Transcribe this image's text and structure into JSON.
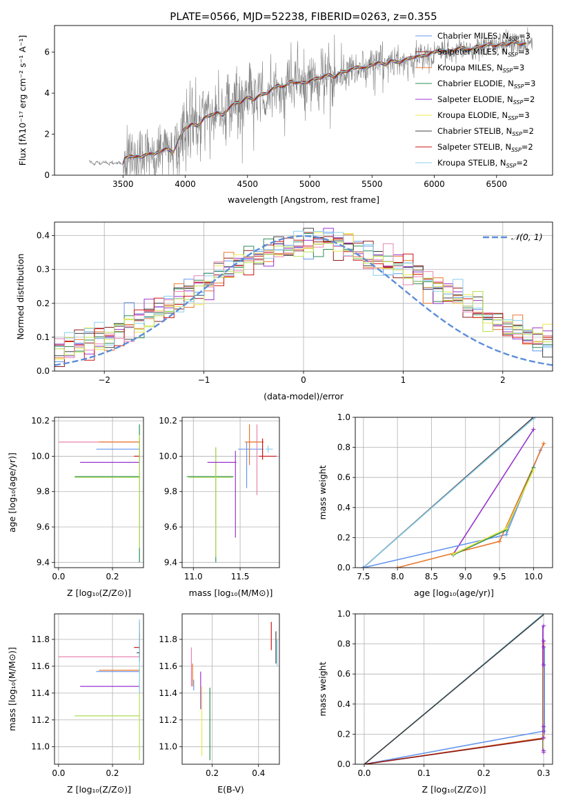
{
  "figure": {
    "title": "PLATE=0566, MJD=52238, FIBERID=0263, z=0.355"
  },
  "colors": {
    "chabrier_miles": "#6495ED",
    "salpeter_miles": "#8B1A1A",
    "kroupa_miles": "#E8762B",
    "chabrier_elodie": "#2E8B57",
    "salpeter_elodie": "#9932CC",
    "kroupa_elodie": "#E8E84A",
    "chabrier_stelib": "#404040",
    "salpeter_stelib": "#CC1111",
    "kroupa_stelib": "#87CEEB",
    "pink": "#E882B0",
    "lightgreen": "#B6E050",
    "gauss": "#5B8DD9",
    "data": "#808080"
  },
  "chart_data": [
    {
      "id": "spectrum",
      "type": "line",
      "xlabel": "wavelength [Angstrom, rest frame]",
      "ylabel": "Flux [fλ10⁻¹⁷ erg cm⁻² s⁻¹ A⁻¹]",
      "xlim": [
        2950,
        6950
      ],
      "ylim": [
        0,
        7.3
      ],
      "xticks": [
        "3500",
        "4000",
        "4500",
        "5000",
        "5500",
        "6000",
        "6500"
      ],
      "yticks": [
        "0",
        "2",
        "4",
        "6"
      ],
      "legend_position": "right",
      "legend": [
        {
          "label": "Chabrier MILES, N",
          "sub": "SSP",
          "suffix": "=3",
          "color": "chabrier_miles"
        },
        {
          "label": "Salpeter MILES, N",
          "sub": "SSP",
          "suffix": "=3",
          "color": "salpeter_miles"
        },
        {
          "label": "Kroupa MILES, N",
          "sub": "SSP",
          "suffix": "=3",
          "color": "kroupa_miles"
        },
        {
          "label": "Chabrier ELODIE, N",
          "sub": "SSP",
          "suffix": "=3",
          "color": "chabrier_elodie"
        },
        {
          "label": "Salpeter ELODIE, N",
          "sub": "SSP",
          "suffix": "=2",
          "color": "salpeter_elodie"
        },
        {
          "label": "Kroupa ELODIE, N",
          "sub": "SSP",
          "suffix": "=3",
          "color": "kroupa_elodie"
        },
        {
          "label": "Chabrier STELIB, N",
          "sub": "SSP",
          "suffix": "=2",
          "color": "chabrier_stelib"
        },
        {
          "label": "Salpeter STELIB, N",
          "sub": "SSP",
          "suffix": "=2",
          "color": "salpeter_stelib"
        },
        {
          "label": "Kroupa STELIB, N",
          "sub": "SSP",
          "suffix": "=2",
          "color": "kroupa_stelib"
        }
      ],
      "model_wavelength": [
        3500,
        3550,
        3600,
        3650,
        3700,
        3750,
        3800,
        3850,
        3900,
        3950,
        4000,
        4050,
        4100,
        4150,
        4200,
        4250,
        4300,
        4350,
        4400,
        4450,
        4500,
        4550,
        4600,
        4650,
        4700,
        4750,
        4800,
        4850,
        4900,
        4950,
        5000,
        5050,
        5100,
        5150,
        5200,
        5250,
        5300,
        5350,
        5400,
        5450,
        5500,
        5550,
        5600,
        5650,
        5700,
        5750,
        5800,
        5850,
        5900,
        5950,
        6000,
        6050,
        6100,
        6150,
        6200,
        6250,
        6300,
        6350,
        6400,
        6450,
        6500,
        6550,
        6600,
        6650,
        6700
      ],
      "model_flux": [
        0.8,
        0.9,
        0.95,
        0.85,
        1.1,
        1.0,
        1.2,
        1.3,
        1.1,
        1.8,
        2.3,
        2.5,
        2.4,
        2.8,
        2.9,
        3.1,
        2.9,
        3.3,
        3.5,
        3.6,
        3.8,
        3.7,
        3.9,
        4.0,
        4.2,
        4.4,
        4.3,
        4.6,
        4.5,
        4.5,
        4.6,
        4.7,
        4.8,
        4.9,
        4.8,
        5.0,
        5.1,
        5.2,
        5.3,
        5.2,
        5.4,
        5.5,
        5.4,
        5.6,
        5.5,
        5.6,
        5.7,
        5.8,
        5.8,
        5.9,
        6.0,
        6.1,
        6.0,
        6.1,
        6.2,
        6.2,
        6.1,
        6.3,
        6.3,
        6.4,
        6.3,
        6.4,
        6.4,
        6.5,
        6.4
      ],
      "data_points": 400
    },
    {
      "id": "residuals",
      "type": "line",
      "xlabel": "(data-model)/error",
      "ylabel": "Normed distribution",
      "xlim": [
        -2.5,
        2.5
      ],
      "ylim": [
        0,
        0.44
      ],
      "xticks": [
        "−2",
        "−1",
        "0",
        "1",
        "2"
      ],
      "yticks": [
        "0.0",
        "0.1",
        "0.2",
        "0.3",
        "0.4"
      ],
      "legend": {
        "label": "𝒩(0, 1)",
        "color": "gauss"
      },
      "gaussian": {
        "mean": 0,
        "sigma": 1
      }
    },
    {
      "id": "age_vs_Z",
      "type": "scatter",
      "xlabel": "Z [log₁₀(Z/Z⊙)]",
      "ylabel": "age  [log₁₀(age/yr)]",
      "xlim": [
        -0.015,
        0.315
      ],
      "ylim": [
        9.37,
        10.22
      ],
      "xticks": [
        "0.0",
        "0.2"
      ],
      "yticks": [
        "9.4",
        "9.6",
        "9.8",
        "10.0",
        "10.2"
      ]
    },
    {
      "id": "age_vs_mass",
      "type": "scatter",
      "xlabel": "mass [log₁₀(M/M⊙)]",
      "xlim": [
        10.88,
        11.92
      ],
      "ylim": [
        9.37,
        10.22
      ],
      "xticks": [
        "11.0",
        "11.5"
      ],
      "yticks": [
        "9.4",
        "9.6",
        "9.8",
        "10.0",
        "10.2"
      ]
    },
    {
      "id": "massweight_vs_age",
      "type": "line",
      "xlabel": "age  [log₁₀(age/yr)]",
      "ylabel": "mass weight",
      "xlim": [
        7.38,
        10.28
      ],
      "ylim": [
        0,
        1.0
      ],
      "xticks": [
        "7.5",
        "8.0",
        "8.5",
        "9.0",
        "9.5",
        "10.0"
      ],
      "yticks": [
        "0.0",
        "0.2",
        "0.4",
        "0.6",
        "0.8",
        "1.0"
      ],
      "series": [
        {
          "color": "salpeter_stelib",
          "x": [
            7.5,
            10.0
          ],
          "y": [
            0,
            1.0
          ]
        },
        {
          "color": "chabrier_stelib",
          "x": [
            7.5,
            10.0
          ],
          "y": [
            0,
            1.0
          ]
        },
        {
          "color": "kroupa_stelib",
          "x": [
            7.5,
            10.02
          ],
          "y": [
            0,
            1.0
          ]
        },
        {
          "color": "salpeter_elodie",
          "x": [
            8.82,
            10.0
          ],
          "y": [
            0.09,
            0.92
          ]
        },
        {
          "color": "chabrier_miles",
          "x": [
            7.5,
            9.6,
            10.1
          ],
          "y": [
            0,
            0.22,
            0.78
          ]
        },
        {
          "color": "kroupa_miles",
          "x": [
            8.0,
            9.5,
            10.15
          ],
          "y": [
            0,
            0.175,
            0.825
          ]
        },
        {
          "color": "chabrier_elodie",
          "x": [
            8.82,
            9.6,
            10.0
          ],
          "y": [
            0.085,
            0.25,
            0.665
          ]
        },
        {
          "color": "kroupa_elodie",
          "x": [
            8.82,
            9.6,
            10.0
          ],
          "y": [
            0.09,
            0.26,
            0.65
          ]
        }
      ]
    },
    {
      "id": "mass_vs_Z",
      "type": "scatter",
      "xlabel": "Z [log₁₀(Z/Z⊙)]",
      "ylabel": "mass [log₁₀(M/M⊙)]",
      "xlim": [
        -0.015,
        0.315
      ],
      "ylim": [
        10.87,
        11.99
      ],
      "xticks": [
        "0.0",
        "0.2"
      ],
      "yticks": [
        "11.0",
        "11.2",
        "11.4",
        "11.6",
        "11.8"
      ]
    },
    {
      "id": "mass_vs_ebv",
      "type": "scatter",
      "xlabel": "E(B-V)",
      "xlim": [
        0.07,
        0.49
      ],
      "ylim": [
        10.87,
        11.99
      ],
      "xticks": [
        "0.2",
        "0.4"
      ],
      "yticks": [
        "11.0",
        "11.2",
        "11.4",
        "11.6",
        "11.8"
      ]
    },
    {
      "id": "massweight_vs_Z",
      "type": "line",
      "xlabel": "Z [log₁₀(Z/Z⊙)]",
      "ylabel": "mass weight",
      "xlim": [
        -0.015,
        0.315
      ],
      "ylim": [
        0,
        1.0
      ],
      "xticks": [
        "0.0",
        "0.1",
        "0.2",
        "0.3"
      ],
      "yticks": [
        "0.0",
        "0.2",
        "0.4",
        "0.6",
        "0.8",
        "1.0"
      ],
      "series": [
        {
          "color": "kroupa_stelib",
          "x": [
            0,
            0.3
          ],
          "y": [
            0,
            1.0
          ]
        },
        {
          "color": "chabrier_stelib",
          "x": [
            0,
            0.3
          ],
          "y": [
            0,
            0.995
          ]
        },
        {
          "color": "chabrier_miles",
          "x": [
            0,
            0.3
          ],
          "y": [
            0,
            0.22
          ]
        },
        {
          "color": "kroupa_miles",
          "x": [
            0,
            0.3
          ],
          "y": [
            0,
            0.175
          ]
        },
        {
          "color": "salpeter_miles",
          "x": [
            0,
            0.3
          ],
          "y": [
            0,
            0.17
          ]
        }
      ]
    }
  ]
}
